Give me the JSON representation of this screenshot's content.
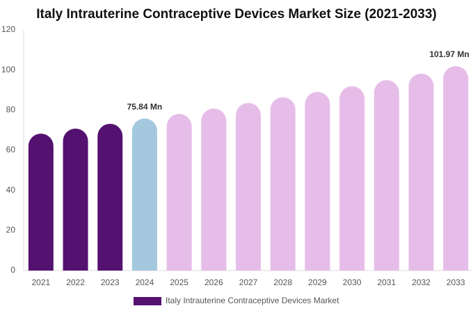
{
  "chart_data": {
    "type": "bar",
    "title": "Italy Intrauterine Contraceptive Devices Market Size (2021-2033)",
    "categories": [
      "2021",
      "2022",
      "2023",
      "2024",
      "2025",
      "2026",
      "2027",
      "2028",
      "2029",
      "2030",
      "2031",
      "2032",
      "2033"
    ],
    "series": [
      {
        "name": "Italy Intrauterine Contraceptive Devices Market",
        "color": "#541170",
        "values": [
          68.3,
          70.8,
          73.2,
          75.84,
          78.1,
          80.8,
          83.6,
          86.4,
          89.1,
          91.9,
          95.0,
          98.2,
          101.97
        ],
        "value_labels": [
          null,
          null,
          null,
          "75.84 Mn",
          null,
          null,
          null,
          null,
          null,
          null,
          null,
          null,
          "101.97 Mn"
        ],
        "colors": [
          "#541170",
          "#541170",
          "#541170",
          "#a4c9de",
          "#e6bde9",
          "#e6bde9",
          "#e6bde9",
          "#e6bde9",
          "#e6bde9",
          "#e6bde9",
          "#e6bde9",
          "#e6bde9",
          "#e6bde9"
        ]
      }
    ],
    "ylim": [
      0,
      120
    ],
    "yticks": [
      0,
      20,
      40,
      60,
      80,
      100,
      120
    ],
    "grid": false,
    "legend": "bottom"
  }
}
